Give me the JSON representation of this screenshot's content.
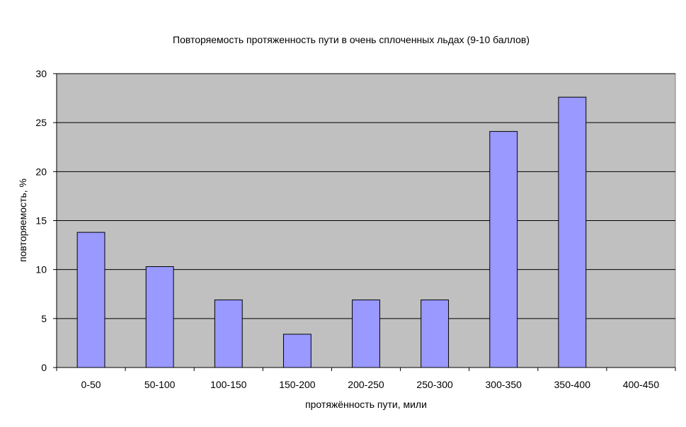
{
  "chart_data": {
    "type": "bar",
    "title": "Повторяемость протяженность пути в очень сплоченных льдах (9-10 баллов)",
    "xlabel": "протяжённость пути, мили",
    "ylabel": "повторяемость, %",
    "categories": [
      "0-50",
      "50-100",
      "100-150",
      "150-200",
      "200-250",
      "250-300",
      "300-350",
      "350-400",
      "400-450"
    ],
    "values": [
      13.8,
      10.3,
      6.9,
      3.4,
      6.9,
      6.9,
      24.1,
      27.6,
      0
    ],
    "ylim": [
      0,
      30
    ],
    "yticks": [
      0,
      5,
      10,
      15,
      20,
      25,
      30
    ],
    "grid": true,
    "legend": "none",
    "colors": {
      "bar_fill": "#9999ff",
      "plot_background": "#c0c0c0",
      "gridline": "#000000"
    }
  }
}
